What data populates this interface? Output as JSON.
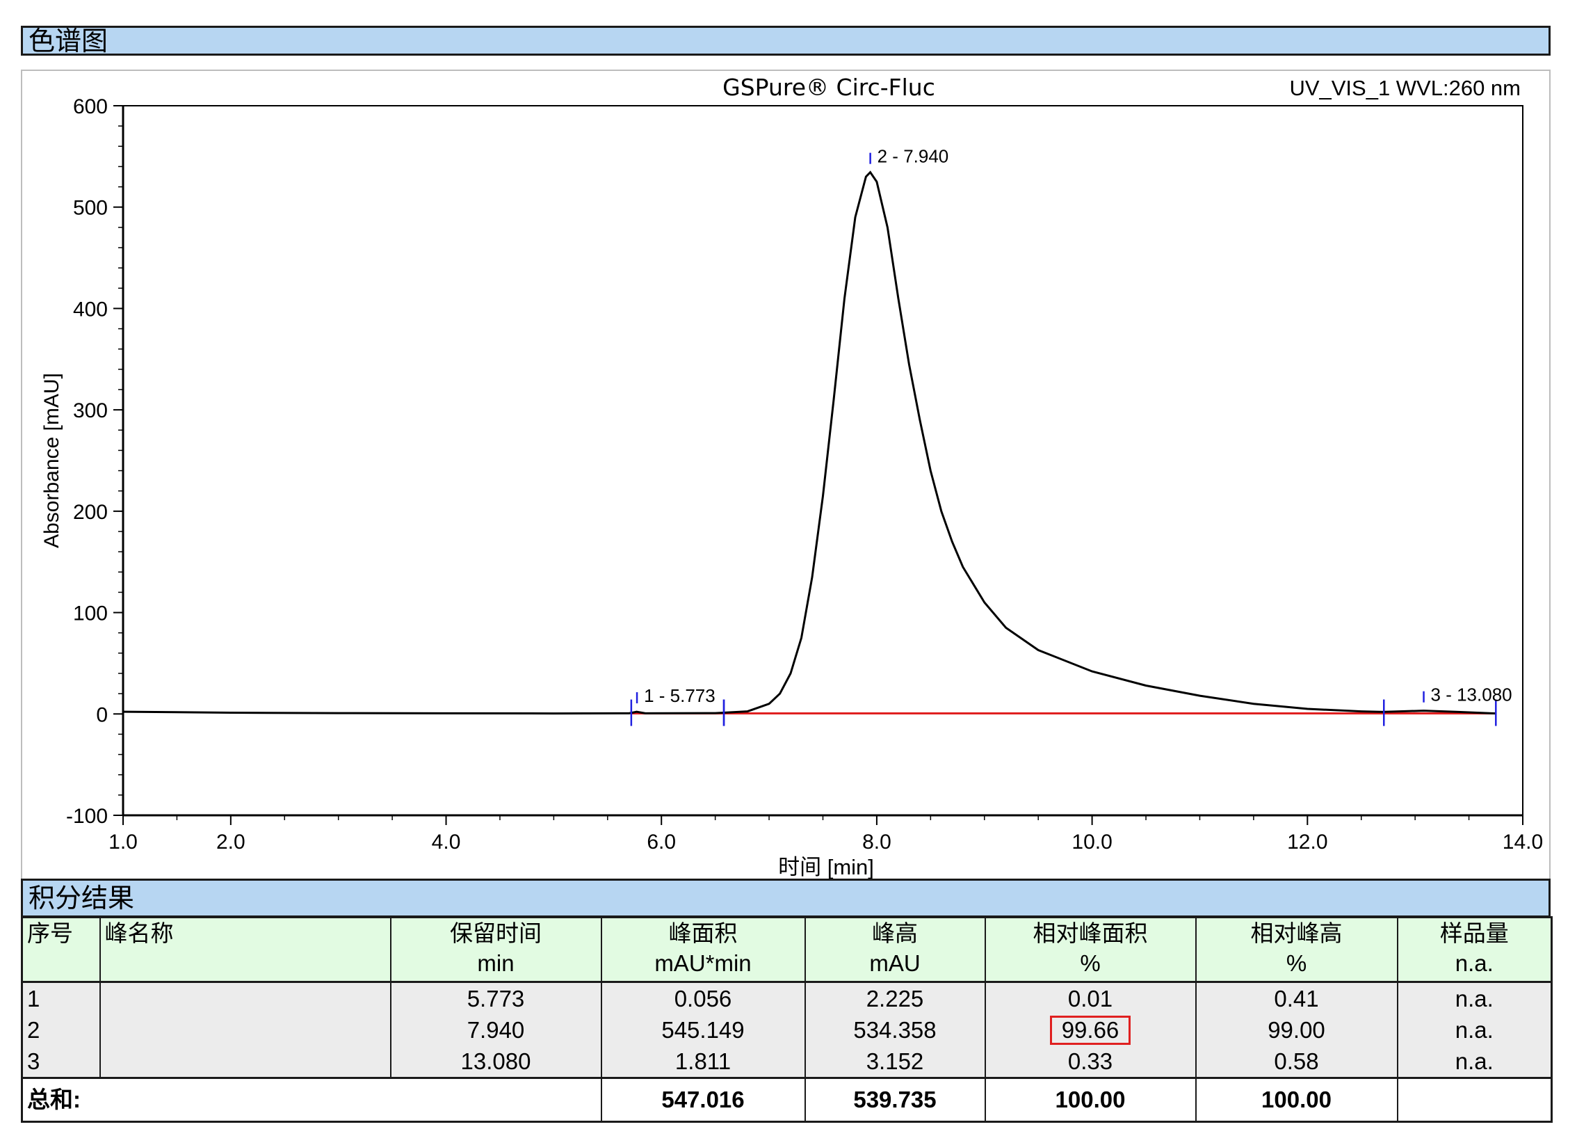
{
  "sections": {
    "chromatogram": "色谱图",
    "integration": "积分结果"
  },
  "chart_data": {
    "type": "line",
    "title": "GSPure® Circ-Fluc",
    "detector": "UV_VIS_1 WVL:260 nm",
    "xlabel": "时间 [min]",
    "ylabel": "Absorbance [mAU]",
    "xlim": [
      1.0,
      14.0
    ],
    "ylim": [
      -100,
      600
    ],
    "x_ticks": [
      "1.0",
      "2.0",
      "4.0",
      "6.0",
      "8.0",
      "10.0",
      "12.0",
      "14.0"
    ],
    "y_ticks": [
      "600",
      "500",
      "400",
      "300",
      "200",
      "100",
      "0",
      "-100"
    ],
    "colors": {
      "trace": "#000000",
      "baseline": "#e02020",
      "markers": "#2020e0"
    },
    "series": [
      {
        "points": [
          [
            1.0,
            2.2
          ],
          [
            2.0,
            1.2
          ],
          [
            3.0,
            0.8
          ],
          [
            4.0,
            0.6
          ],
          [
            5.0,
            0.5
          ],
          [
            5.7,
            0.6
          ],
          [
            5.77,
            2.2
          ],
          [
            5.85,
            0.6
          ],
          [
            6.5,
            0.8
          ],
          [
            6.8,
            2.5
          ],
          [
            7.0,
            10
          ],
          [
            7.1,
            20
          ],
          [
            7.2,
            40
          ],
          [
            7.3,
            75
          ],
          [
            7.4,
            135
          ],
          [
            7.5,
            215
          ],
          [
            7.6,
            310
          ],
          [
            7.7,
            410
          ],
          [
            7.8,
            490
          ],
          [
            7.9,
            530
          ],
          [
            7.94,
            534.4
          ],
          [
            8.0,
            525
          ],
          [
            8.1,
            480
          ],
          [
            8.2,
            410
          ],
          [
            8.3,
            345
          ],
          [
            8.4,
            290
          ],
          [
            8.5,
            240
          ],
          [
            8.6,
            200
          ],
          [
            8.7,
            170
          ],
          [
            8.8,
            145
          ],
          [
            9.0,
            110
          ],
          [
            9.2,
            85
          ],
          [
            9.5,
            63
          ],
          [
            10.0,
            42
          ],
          [
            10.5,
            28
          ],
          [
            11.0,
            18
          ],
          [
            11.5,
            10
          ],
          [
            12.0,
            5
          ],
          [
            12.5,
            2.5
          ],
          [
            12.7,
            2
          ],
          [
            13.08,
            3.2
          ],
          [
            13.4,
            2
          ],
          [
            13.75,
            0.5
          ]
        ]
      }
    ],
    "peaks": [
      {
        "label": "1 - 5.773",
        "rt": 5.773,
        "height": 2.225,
        "start": 5.72,
        "end": 6.58
      },
      {
        "label": "2 - 7.940",
        "rt": 7.94,
        "height": 534.358,
        "start": 6.58,
        "end": 12.71
      },
      {
        "label": "3 - 13.080",
        "rt": 13.08,
        "height": 3.152,
        "start": 12.71,
        "end": 13.75
      }
    ],
    "baselines": [
      [
        5.72,
        0.5
      ],
      [
        13.75,
        0.5
      ]
    ]
  },
  "table": {
    "headers": [
      "序号",
      "峰名称",
      "保留时间",
      "峰面积",
      "峰高",
      "相对峰面积",
      "相对峰高",
      "样品量"
    ],
    "units": [
      "",
      "",
      "min",
      "mAU*min",
      "mAU",
      "%",
      "%",
      "n.a."
    ],
    "rows": [
      [
        "1",
        "",
        "5.773",
        "0.056",
        "2.225",
        "0.01",
        "0.41",
        "n.a."
      ],
      [
        "2",
        "",
        "7.940",
        "545.149",
        "534.358",
        "99.66",
        "99.00",
        "n.a."
      ],
      [
        "3",
        "",
        "13.080",
        "1.811",
        "3.152",
        "0.33",
        "0.58",
        "n.a."
      ]
    ],
    "total": {
      "label": "总和:",
      "area": "547.016",
      "height": "539.735",
      "rel_area": "100.00",
      "rel_height": "100.00"
    },
    "highlight_note": "99.66"
  }
}
